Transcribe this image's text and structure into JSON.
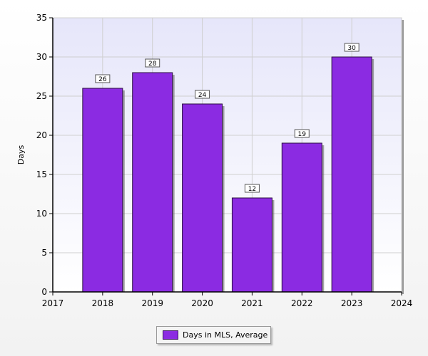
{
  "chart_data": {
    "type": "bar",
    "x": [
      2018,
      2019,
      2020,
      2021,
      2022,
      2023
    ],
    "values": [
      26,
      28,
      24,
      12,
      19,
      30
    ],
    "data_labels": [
      "26",
      "28",
      "24",
      "12",
      "19",
      "30"
    ],
    "xlim": [
      2017,
      2024
    ],
    "ylim": [
      0,
      35
    ],
    "x_ticks": [
      2017,
      2018,
      2019,
      2020,
      2021,
      2022,
      2023,
      2024
    ],
    "y_ticks": [
      0,
      5,
      10,
      15,
      20,
      25,
      30,
      35
    ],
    "title": "",
    "xlabel": "",
    "ylabel": "Days",
    "series": [
      {
        "name": "Days in MLS, Average",
        "values": [
          26,
          28,
          24,
          12,
          19,
          30
        ]
      }
    ],
    "grid": true,
    "legend_position": "bottom-center"
  },
  "colors": {
    "bar": "#8b2be2",
    "plot_background": "#e6e6fa"
  }
}
